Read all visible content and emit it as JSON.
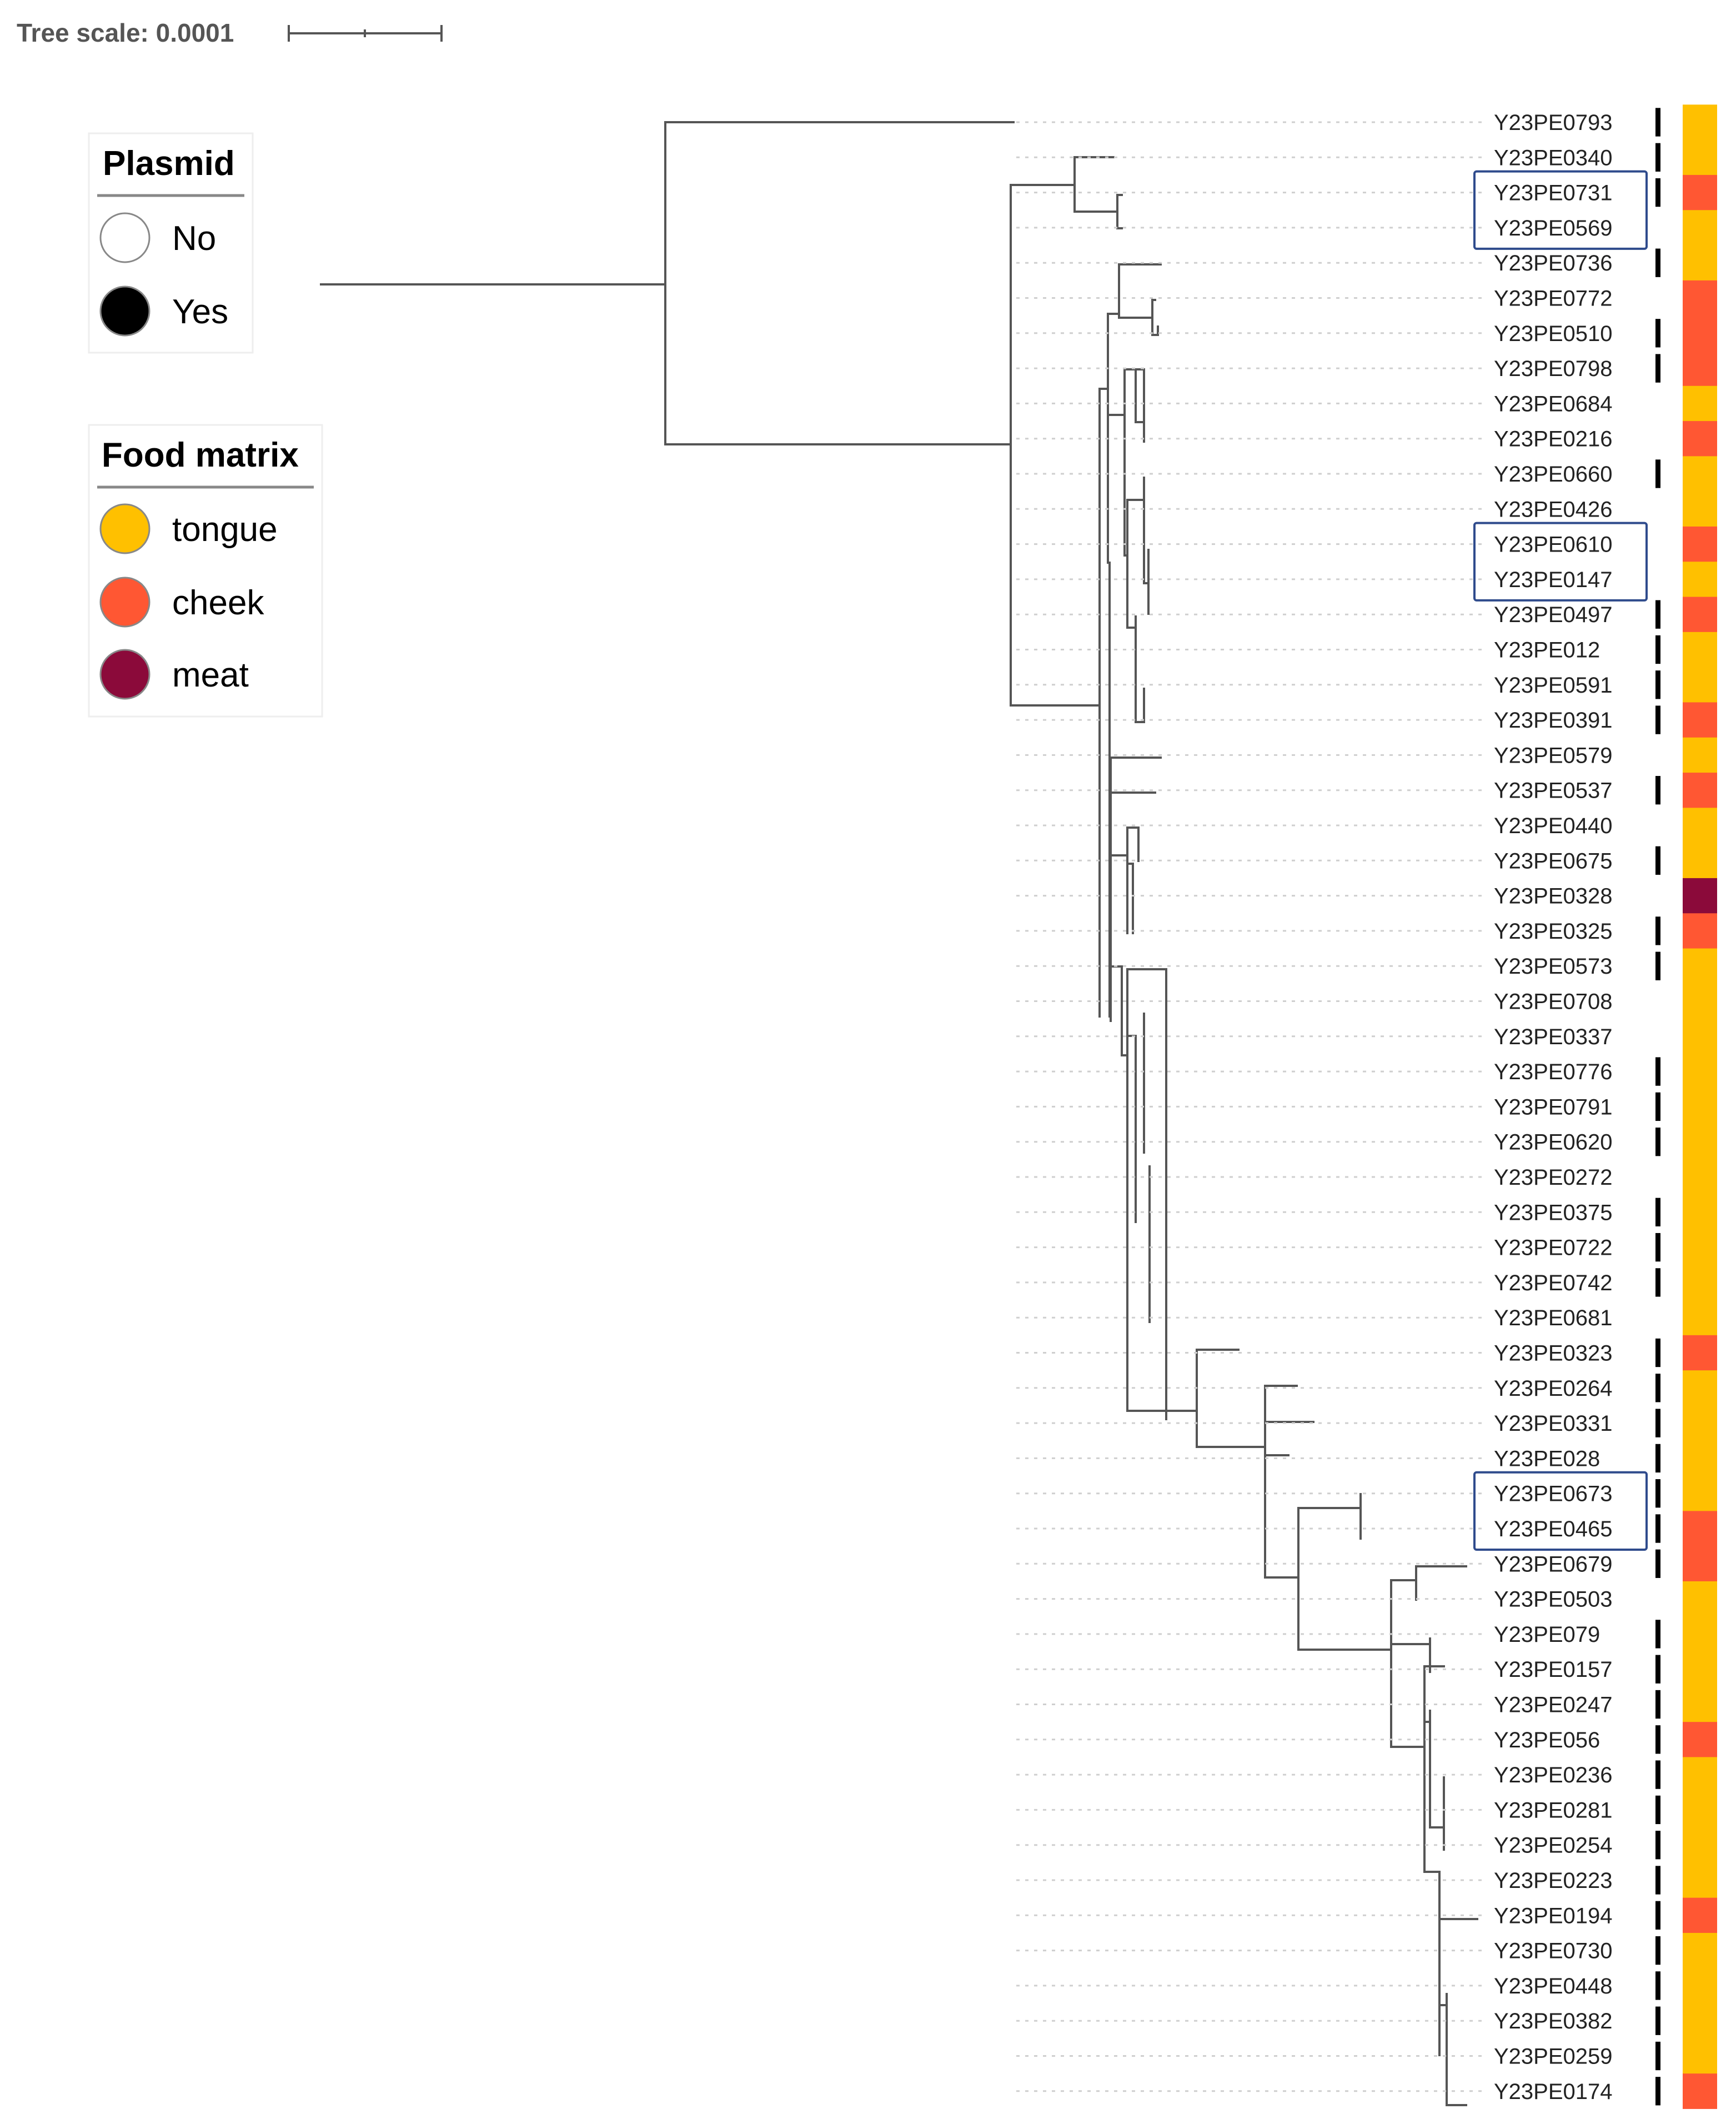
{
  "tree_scale": {
    "label": "Tree scale: 0.0001"
  },
  "legend_plasmid": {
    "title": "Plasmid",
    "items": [
      {
        "label": "No",
        "color": "#ffffff"
      },
      {
        "label": "Yes",
        "color": "#000000"
      }
    ]
  },
  "legend_food": {
    "title": "Food matrix",
    "items": [
      {
        "label": "tongue",
        "color": "#FFC000"
      },
      {
        "label": "cheek",
        "color": "#FF5733"
      },
      {
        "label": "meat",
        "color": "#8B0A3A"
      }
    ]
  },
  "colors": {
    "branch": "#555555",
    "guide": "#cfcfcf",
    "highlight_box": "#2F4B8C",
    "plasmid_bar": "#000000"
  },
  "leaves": [
    {
      "name": "Y23PE0793",
      "plasmid": "Yes",
      "food": "tongue"
    },
    {
      "name": "Y23PE0340",
      "plasmid": "Yes",
      "food": "tongue"
    },
    {
      "name": "Y23PE0731",
      "plasmid": "Yes",
      "food": "cheek"
    },
    {
      "name": "Y23PE0569",
      "plasmid": "No",
      "food": "tongue"
    },
    {
      "name": "Y23PE0736",
      "plasmid": "Yes",
      "food": "tongue"
    },
    {
      "name": "Y23PE0772",
      "plasmid": "No",
      "food": "cheek"
    },
    {
      "name": "Y23PE0510",
      "plasmid": "Yes",
      "food": "cheek"
    },
    {
      "name": "Y23PE0798",
      "plasmid": "Yes",
      "food": "cheek"
    },
    {
      "name": "Y23PE0684",
      "plasmid": "No",
      "food": "tongue"
    },
    {
      "name": "Y23PE0216",
      "plasmid": "No",
      "food": "cheek"
    },
    {
      "name": "Y23PE0660",
      "plasmid": "Yes",
      "food": "tongue"
    },
    {
      "name": "Y23PE0426",
      "plasmid": "No",
      "food": "tongue"
    },
    {
      "name": "Y23PE0610",
      "plasmid": "No",
      "food": "cheek"
    },
    {
      "name": "Y23PE0147",
      "plasmid": "No",
      "food": "tongue"
    },
    {
      "name": "Y23PE0497",
      "plasmid": "Yes",
      "food": "cheek"
    },
    {
      "name": "Y23PE012",
      "plasmid": "Yes",
      "food": "tongue"
    },
    {
      "name": "Y23PE0591",
      "plasmid": "Yes",
      "food": "tongue"
    },
    {
      "name": "Y23PE0391",
      "plasmid": "Yes",
      "food": "cheek"
    },
    {
      "name": "Y23PE0579",
      "plasmid": "No",
      "food": "tongue"
    },
    {
      "name": "Y23PE0537",
      "plasmid": "Yes",
      "food": "cheek"
    },
    {
      "name": "Y23PE0440",
      "plasmid": "No",
      "food": "tongue"
    },
    {
      "name": "Y23PE0675",
      "plasmid": "Yes",
      "food": "tongue"
    },
    {
      "name": "Y23PE0328",
      "plasmid": "No",
      "food": "meat"
    },
    {
      "name": "Y23PE0325",
      "plasmid": "Yes",
      "food": "cheek"
    },
    {
      "name": "Y23PE0573",
      "plasmid": "Yes",
      "food": "tongue"
    },
    {
      "name": "Y23PE0708",
      "plasmid": "No",
      "food": "tongue"
    },
    {
      "name": "Y23PE0337",
      "plasmid": "No",
      "food": "tongue"
    },
    {
      "name": "Y23PE0776",
      "plasmid": "Yes",
      "food": "tongue"
    },
    {
      "name": "Y23PE0791",
      "plasmid": "Yes",
      "food": "tongue"
    },
    {
      "name": "Y23PE0620",
      "plasmid": "Yes",
      "food": "tongue"
    },
    {
      "name": "Y23PE0272",
      "plasmid": "No",
      "food": "tongue"
    },
    {
      "name": "Y23PE0375",
      "plasmid": "Yes",
      "food": "tongue"
    },
    {
      "name": "Y23PE0722",
      "plasmid": "Yes",
      "food": "tongue"
    },
    {
      "name": "Y23PE0742",
      "plasmid": "Yes",
      "food": "tongue"
    },
    {
      "name": "Y23PE0681",
      "plasmid": "No",
      "food": "tongue"
    },
    {
      "name": "Y23PE0323",
      "plasmid": "Yes",
      "food": "cheek"
    },
    {
      "name": "Y23PE0264",
      "plasmid": "Yes",
      "food": "tongue"
    },
    {
      "name": "Y23PE0331",
      "plasmid": "Yes",
      "food": "tongue"
    },
    {
      "name": "Y23PE028",
      "plasmid": "Yes",
      "food": "tongue"
    },
    {
      "name": "Y23PE0673",
      "plasmid": "Yes",
      "food": "tongue"
    },
    {
      "name": "Y23PE0465",
      "plasmid": "Yes",
      "food": "cheek"
    },
    {
      "name": "Y23PE0679",
      "plasmid": "Yes",
      "food": "cheek"
    },
    {
      "name": "Y23PE0503",
      "plasmid": "No",
      "food": "tongue"
    },
    {
      "name": "Y23PE079",
      "plasmid": "Yes",
      "food": "tongue"
    },
    {
      "name": "Y23PE0157",
      "plasmid": "Yes",
      "food": "tongue"
    },
    {
      "name": "Y23PE0247",
      "plasmid": "Yes",
      "food": "tongue"
    },
    {
      "name": "Y23PE056",
      "plasmid": "Yes",
      "food": "cheek"
    },
    {
      "name": "Y23PE0236",
      "plasmid": "Yes",
      "food": "tongue"
    },
    {
      "name": "Y23PE0281",
      "plasmid": "Yes",
      "food": "tongue"
    },
    {
      "name": "Y23PE0254",
      "plasmid": "Yes",
      "food": "tongue"
    },
    {
      "name": "Y23PE0223",
      "plasmid": "Yes",
      "food": "tongue"
    },
    {
      "name": "Y23PE0194",
      "plasmid": "Yes",
      "food": "cheek"
    },
    {
      "name": "Y23PE0730",
      "plasmid": "Yes",
      "food": "tongue"
    },
    {
      "name": "Y23PE0448",
      "plasmid": "Yes",
      "food": "tongue"
    },
    {
      "name": "Y23PE0382",
      "plasmid": "Yes",
      "food": "tongue"
    },
    {
      "name": "Y23PE0259",
      "plasmid": "Yes",
      "food": "tongue"
    },
    {
      "name": "Y23PE0174",
      "plasmid": "Yes",
      "food": "cheek"
    }
  ],
  "highlighted_pairs": [
    [
      "Y23PE0731",
      "Y23PE0569"
    ],
    [
      "Y23PE0610",
      "Y23PE0147"
    ],
    [
      "Y23PE0673",
      "Y23PE0465"
    ]
  ]
}
